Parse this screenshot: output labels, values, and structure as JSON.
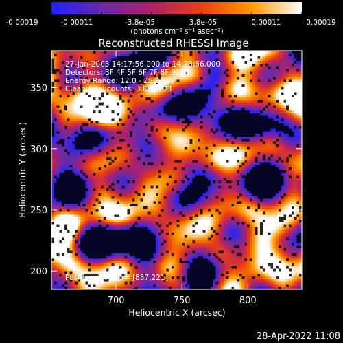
{
  "chart_data": {
    "type": "heatmap",
    "title": "Reconstructed RHESSI Image",
    "xlabel": "Heliocentric X (arcsec)",
    "ylabel": "Heliocentric Y (arcsec)",
    "xlim": [
      651,
      841
    ],
    "ylim": [
      185,
      380
    ],
    "xticks": [
      "700",
      "750",
      "800"
    ],
    "xtick_values": [
      700,
      750,
      800
    ],
    "yticks": [
      "200",
      "250",
      "300",
      "350"
    ],
    "ytick_values": [
      200,
      250,
      300,
      350
    ],
    "colorbar": {
      "range": [
        -0.00019,
        0.00019
      ],
      "tick_labels": [
        "-0.00019",
        "-0.00011",
        "-3.8e-05",
        "3.8e-05",
        "0.00011",
        "0.00019"
      ],
      "unit_label": "(photons cm⁻² s⁻¹ asec⁻²)",
      "colors": [
        "#2020ff",
        "#6a2aa8",
        "#b0206c",
        "#e84010",
        "#ff9a00",
        "#ffffff"
      ]
    },
    "annotations": [
      "27-Jan-2003 14:17:56.000 to 14:23:56.000",
      "Detectors: 3F 4F 5F 6F 7F 8F 9F  0",
      "Energy Range: 12.0 - 25.0 keV",
      "Clean     Total counts: 3.88E+03",
      "Position of Peak = [837,221]"
    ],
    "bright_regions": [
      {
        "x": 675,
        "y": 345,
        "level": 0.95
      },
      {
        "x": 690,
        "y": 325,
        "level": 0.85
      },
      {
        "x": 730,
        "y": 318,
        "level": 0.85
      },
      {
        "x": 760,
        "y": 360,
        "level": 0.9
      },
      {
        "x": 790,
        "y": 350,
        "level": 0.75
      },
      {
        "x": 825,
        "y": 345,
        "level": 0.7
      },
      {
        "x": 820,
        "y": 305,
        "level": 0.85
      },
      {
        "x": 775,
        "y": 290,
        "level": 0.65
      },
      {
        "x": 745,
        "y": 275,
        "level": 0.7
      },
      {
        "x": 690,
        "y": 265,
        "level": 0.85
      },
      {
        "x": 705,
        "y": 245,
        "level": 0.8
      },
      {
        "x": 665,
        "y": 240,
        "level": 0.75
      },
      {
        "x": 800,
        "y": 250,
        "level": 0.75
      },
      {
        "x": 830,
        "y": 235,
        "level": 0.9
      },
      {
        "x": 837,
        "y": 221,
        "level": 1.0
      },
      {
        "x": 780,
        "y": 215,
        "level": 0.75
      },
      {
        "x": 805,
        "y": 200,
        "level": 0.65
      },
      {
        "x": 735,
        "y": 205,
        "level": 0.55
      },
      {
        "x": 665,
        "y": 205,
        "level": 0.55
      }
    ],
    "dark_regions": [
      {
        "x": 740,
        "y": 340,
        "level": 0.8
      },
      {
        "x": 720,
        "y": 300,
        "level": 0.9
      },
      {
        "x": 795,
        "y": 320,
        "level": 0.85
      },
      {
        "x": 765,
        "y": 255,
        "level": 0.85
      },
      {
        "x": 700,
        "y": 220,
        "level": 0.8
      },
      {
        "x": 815,
        "y": 275,
        "level": 0.7
      },
      {
        "x": 670,
        "y": 295,
        "level": 0.6
      },
      {
        "x": 760,
        "y": 195,
        "level": 0.7
      }
    ]
  },
  "footer": {
    "timestamp": "28-Apr-2022 11:08"
  }
}
